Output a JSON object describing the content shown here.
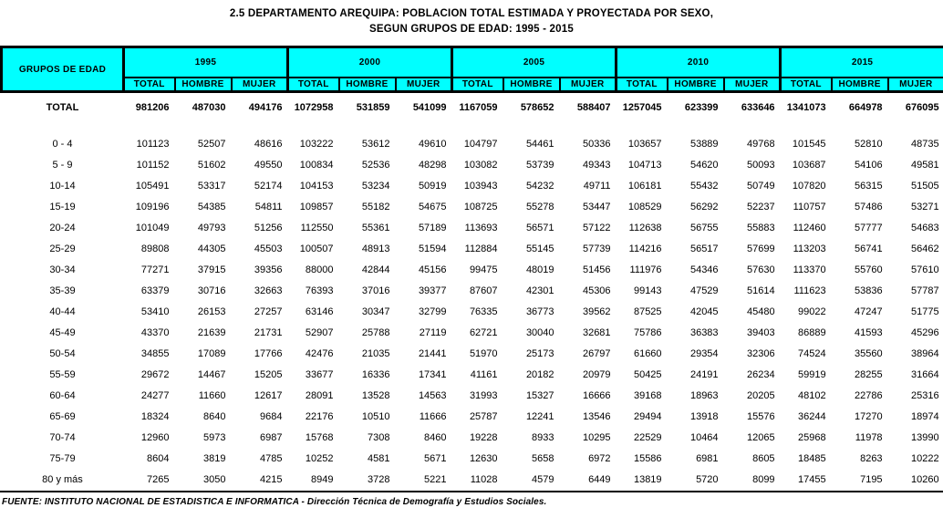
{
  "title": {
    "line1": "2.5  DEPARTAMENTO AREQUIPA: POBLACION TOTAL ESTIMADA Y PROYECTADA POR SEXO,",
    "line2": "SEGUN GRUPOS DE EDAD: 1995 - 2015"
  },
  "colors": {
    "header_bg": "#00ffff",
    "border": "#000000",
    "text": "#000000"
  },
  "table": {
    "corner_header": "GRUPOS DE EDAD",
    "year_groups": [
      "1995",
      "2000",
      "2005",
      "2010",
      "2015"
    ],
    "sub_headers": [
      "TOTAL",
      "HOMBRE",
      "MUJER"
    ],
    "total_row": {
      "label": "TOTAL",
      "values": [
        "981206",
        "487030",
        "494176",
        "1072958",
        "531859",
        "541099",
        "1167059",
        "578652",
        "588407",
        "1257045",
        "623399",
        "633646",
        "1341073",
        "664978",
        "676095"
      ]
    },
    "rows": [
      {
        "label": "0 - 4",
        "values": [
          "101123",
          "52507",
          "48616",
          "103222",
          "53612",
          "49610",
          "104797",
          "54461",
          "50336",
          "103657",
          "53889",
          "49768",
          "101545",
          "52810",
          "48735"
        ]
      },
      {
        "label": "5 - 9",
        "values": [
          "101152",
          "51602",
          "49550",
          "100834",
          "52536",
          "48298",
          "103082",
          "53739",
          "49343",
          "104713",
          "54620",
          "50093",
          "103687",
          "54106",
          "49581"
        ]
      },
      {
        "label": "10-14",
        "values": [
          "105491",
          "53317",
          "52174",
          "104153",
          "53234",
          "50919",
          "103943",
          "54232",
          "49711",
          "106181",
          "55432",
          "50749",
          "107820",
          "56315",
          "51505"
        ]
      },
      {
        "label": "15-19",
        "values": [
          "109196",
          "54385",
          "54811",
          "109857",
          "55182",
          "54675",
          "108725",
          "55278",
          "53447",
          "108529",
          "56292",
          "52237",
          "110757",
          "57486",
          "53271"
        ]
      },
      {
        "label": "20-24",
        "values": [
          "101049",
          "49793",
          "51256",
          "112550",
          "55361",
          "57189",
          "113693",
          "56571",
          "57122",
          "112638",
          "56755",
          "55883",
          "112460",
          "57777",
          "54683"
        ]
      },
      {
        "label": "25-29",
        "values": [
          "89808",
          "44305",
          "45503",
          "100507",
          "48913",
          "51594",
          "112884",
          "55145",
          "57739",
          "114216",
          "56517",
          "57699",
          "113203",
          "56741",
          "56462"
        ]
      },
      {
        "label": "30-34",
        "values": [
          "77271",
          "37915",
          "39356",
          "88000",
          "42844",
          "45156",
          "99475",
          "48019",
          "51456",
          "111976",
          "54346",
          "57630",
          "113370",
          "55760",
          "57610"
        ]
      },
      {
        "label": "35-39",
        "values": [
          "63379",
          "30716",
          "32663",
          "76393",
          "37016",
          "39377",
          "87607",
          "42301",
          "45306",
          "99143",
          "47529",
          "51614",
          "111623",
          "53836",
          "57787"
        ]
      },
      {
        "label": "40-44",
        "values": [
          "53410",
          "26153",
          "27257",
          "63146",
          "30347",
          "32799",
          "76335",
          "36773",
          "39562",
          "87525",
          "42045",
          "45480",
          "99022",
          "47247",
          "51775"
        ]
      },
      {
        "label": "45-49",
        "values": [
          "43370",
          "21639",
          "21731",
          "52907",
          "25788",
          "27119",
          "62721",
          "30040",
          "32681",
          "75786",
          "36383",
          "39403",
          "86889",
          "41593",
          "45296"
        ]
      },
      {
        "label": "50-54",
        "values": [
          "34855",
          "17089",
          "17766",
          "42476",
          "21035",
          "21441",
          "51970",
          "25173",
          "26797",
          "61660",
          "29354",
          "32306",
          "74524",
          "35560",
          "38964"
        ]
      },
      {
        "label": "55-59",
        "values": [
          "29672",
          "14467",
          "15205",
          "33677",
          "16336",
          "17341",
          "41161",
          "20182",
          "20979",
          "50425",
          "24191",
          "26234",
          "59919",
          "28255",
          "31664"
        ]
      },
      {
        "label": "60-64",
        "values": [
          "24277",
          "11660",
          "12617",
          "28091",
          "13528",
          "14563",
          "31993",
          "15327",
          "16666",
          "39168",
          "18963",
          "20205",
          "48102",
          "22786",
          "25316"
        ]
      },
      {
        "label": "65-69",
        "values": [
          "18324",
          "8640",
          "9684",
          "22176",
          "10510",
          "11666",
          "25787",
          "12241",
          "13546",
          "29494",
          "13918",
          "15576",
          "36244",
          "17270",
          "18974"
        ]
      },
      {
        "label": "70-74",
        "values": [
          "12960",
          "5973",
          "6987",
          "15768",
          "7308",
          "8460",
          "19228",
          "8933",
          "10295",
          "22529",
          "10464",
          "12065",
          "25968",
          "11978",
          "13990"
        ]
      },
      {
        "label": "75-79",
        "values": [
          "8604",
          "3819",
          "4785",
          "10252",
          "4581",
          "5671",
          "12630",
          "5658",
          "6972",
          "15586",
          "6981",
          "8605",
          "18485",
          "8263",
          "10222"
        ]
      },
      {
        "label": "80 y más",
        "values": [
          "7265",
          "3050",
          "4215",
          "8949",
          "3728",
          "5221",
          "11028",
          "4579",
          "6449",
          "13819",
          "5720",
          "8099",
          "17455",
          "7195",
          "10260"
        ]
      }
    ]
  },
  "footer": {
    "source": "FUENTE: INSTITUTO NACIONAL DE ESTADISTICA E INFORMATICA - Dirección Técnica de Demografía y Estudios Sociales."
  }
}
